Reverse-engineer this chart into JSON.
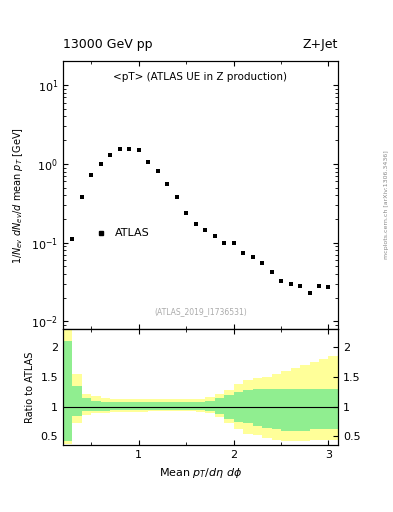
{
  "title_left": "13000 GeV pp",
  "title_right": "Z+Jet",
  "annotation": "<pT> (ATLAS UE in Z production)",
  "ref_label": "(ATLAS_2019_I1736531)",
  "side_label": "mcplots.cern.ch [arXiv:1306.3436]",
  "ylabel_main": "1/N_{ev} dN_{ev}/d mean p_T [GeV]",
  "ylabel_ratio": "Ratio to ATLAS",
  "xlabel": "Mean p_{T}/dη dφ",
  "atlas_label": "ATLAS",
  "data_x": [
    0.3,
    0.4,
    0.5,
    0.6,
    0.7,
    0.8,
    0.9,
    1.0,
    1.1,
    1.2,
    1.3,
    1.4,
    1.5,
    1.6,
    1.7,
    1.8,
    1.9,
    2.0,
    2.1,
    2.2,
    2.3,
    2.4,
    2.5,
    2.6,
    2.7,
    2.8,
    2.9,
    3.0
  ],
  "data_y": [
    0.11,
    0.38,
    0.72,
    1.0,
    1.3,
    1.55,
    1.55,
    1.5,
    1.05,
    0.82,
    0.55,
    0.38,
    0.24,
    0.175,
    0.145,
    0.12,
    0.1,
    0.1,
    0.075,
    0.065,
    0.055,
    0.042,
    0.033,
    0.03,
    0.028,
    0.023,
    0.028,
    0.027
  ],
  "ylim_main": [
    0.008,
    20
  ],
  "ylim_ratio": [
    0.35,
    2.3
  ],
  "xlim": [
    0.2,
    3.1
  ],
  "ratio_x_edges": [
    0.2,
    0.3,
    0.4,
    0.5,
    0.6,
    0.7,
    0.8,
    0.9,
    1.0,
    1.1,
    1.2,
    1.3,
    1.4,
    1.5,
    1.6,
    1.7,
    1.8,
    1.9,
    2.0,
    2.1,
    2.2,
    2.3,
    2.4,
    2.5,
    2.6,
    2.7,
    2.8,
    2.9,
    3.0,
    3.1
  ],
  "green_lo": [
    0.42,
    0.85,
    0.92,
    0.93,
    0.93,
    0.94,
    0.94,
    0.94,
    0.94,
    0.95,
    0.95,
    0.95,
    0.95,
    0.95,
    0.94,
    0.93,
    0.88,
    0.8,
    0.75,
    0.72,
    0.68,
    0.65,
    0.62,
    0.6,
    0.6,
    0.6,
    0.62,
    0.62,
    0.62
  ],
  "green_hi": [
    2.1,
    1.35,
    1.15,
    1.1,
    1.08,
    1.07,
    1.07,
    1.07,
    1.07,
    1.07,
    1.07,
    1.07,
    1.07,
    1.07,
    1.08,
    1.1,
    1.15,
    1.2,
    1.25,
    1.28,
    1.3,
    1.3,
    1.3,
    1.3,
    1.3,
    1.3,
    1.3,
    1.3,
    1.3
  ],
  "yellow_lo": [
    0.38,
    0.72,
    0.86,
    0.89,
    0.9,
    0.91,
    0.91,
    0.91,
    0.91,
    0.92,
    0.92,
    0.92,
    0.92,
    0.92,
    0.91,
    0.89,
    0.82,
    0.72,
    0.62,
    0.55,
    0.52,
    0.48,
    0.44,
    0.42,
    0.42,
    0.42,
    0.44,
    0.44,
    0.44
  ],
  "yellow_hi": [
    2.3,
    1.55,
    1.22,
    1.18,
    1.14,
    1.12,
    1.12,
    1.12,
    1.12,
    1.12,
    1.12,
    1.12,
    1.12,
    1.12,
    1.13,
    1.16,
    1.22,
    1.28,
    1.38,
    1.45,
    1.48,
    1.5,
    1.55,
    1.6,
    1.65,
    1.7,
    1.75,
    1.8,
    1.85
  ],
  "color_green": "#90EE90",
  "color_yellow": "#FFFF99",
  "color_data": "black",
  "background_color": "#ffffff",
  "xticks": [
    1,
    2,
    3
  ],
  "xticklabels": [
    "1",
    "2",
    "3"
  ],
  "yticks_ratio": [
    0.5,
    1.0,
    1.5,
    2.0
  ],
  "yticklabels_ratio": [
    "0.5",
    "1",
    "1.5",
    "2"
  ]
}
